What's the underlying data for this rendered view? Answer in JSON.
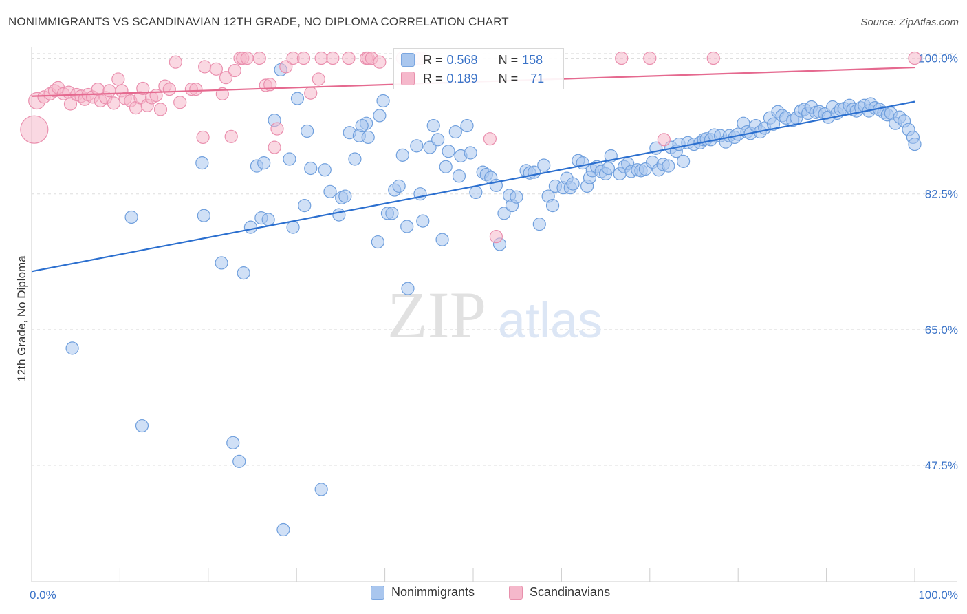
{
  "header": {
    "title": "NONIMMIGRANTS VS SCANDINAVIAN 12TH GRADE, NO DIPLOMA CORRELATION CHART",
    "source": "Source: ZipAtlas.com"
  },
  "watermark": {
    "zip": "ZIP",
    "atlas": "atlas"
  },
  "stats": {
    "rows": [
      {
        "r_label": "R =",
        "r_value": "0.568",
        "n_label": "N =",
        "n_value": "158",
        "color": "#a9c6ee",
        "border": "#7aa6e0"
      },
      {
        "r_label": "R =",
        "r_value": "0.189",
        "n_label": "N =",
        "n_value": "71",
        "color": "#f5b8cb",
        "border": "#e890ac"
      }
    ]
  },
  "colors": {
    "blue_fill": "#a9c6ee",
    "blue_stroke": "#6f9fdd",
    "blue_line": "#2b6fcf",
    "pink_fill": "#f5b8cb",
    "pink_stroke": "#ea8fae",
    "pink_line": "#e5698f",
    "axis_label": "#3a73c8",
    "grid": "#dddddd"
  },
  "chart_data": {
    "type": "scatter",
    "xlabel": "",
    "ylabel": "12th Grade, No Diploma",
    "xlim": [
      0,
      100
    ],
    "ylim": [
      32.5,
      102
    ],
    "x_tick_labels": [
      "0.0%",
      "100.0%"
    ],
    "y_ticks": [
      100.0,
      82.5,
      65.0,
      47.5
    ],
    "y_tick_labels": [
      "100.0%",
      "82.5%",
      "65.0%",
      "47.5%"
    ],
    "grid": true,
    "legend": "bottom",
    "series": [
      {
        "name": "Nonimmigrants",
        "trend": [
          [
            0,
            72.5
          ],
          [
            100,
            94.4
          ]
        ],
        "points": [
          [
            4.6,
            62.6
          ],
          [
            11.3,
            79.5
          ],
          [
            12.5,
            52.6
          ],
          [
            19.3,
            86.5
          ],
          [
            19.5,
            79.7
          ],
          [
            21.5,
            73.6
          ],
          [
            22.8,
            50.4
          ],
          [
            23.5,
            48.0
          ],
          [
            24.0,
            72.3
          ],
          [
            24.8,
            78.2
          ],
          [
            25.5,
            86.1
          ],
          [
            26.0,
            79.4
          ],
          [
            26.3,
            86.5
          ],
          [
            26.8,
            79.2
          ],
          [
            27.5,
            92.0
          ],
          [
            28.2,
            98.5
          ],
          [
            28.5,
            39.2
          ],
          [
            29.2,
            87.0
          ],
          [
            29.6,
            78.2
          ],
          [
            30.1,
            94.8
          ],
          [
            30.9,
            81.0
          ],
          [
            31.2,
            90.6
          ],
          [
            31.6,
            85.8
          ],
          [
            32.8,
            44.4
          ],
          [
            33.2,
            85.6
          ],
          [
            33.8,
            82.8
          ],
          [
            34.8,
            79.8
          ],
          [
            35.1,
            82.0
          ],
          [
            35.5,
            82.2
          ],
          [
            36.0,
            90.4
          ],
          [
            36.6,
            87.0
          ],
          [
            37.1,
            90.0
          ],
          [
            37.9,
            91.6
          ],
          [
            37.4,
            91.3
          ],
          [
            38.1,
            89.8
          ],
          [
            39.2,
            76.3
          ],
          [
            39.4,
            92.6
          ],
          [
            39.8,
            94.5
          ],
          [
            40.3,
            80.0
          ],
          [
            40.8,
            80.0
          ],
          [
            41.1,
            83.0
          ],
          [
            41.6,
            83.5
          ],
          [
            42.0,
            87.5
          ],
          [
            42.5,
            78.3
          ],
          [
            42.6,
            70.3
          ],
          [
            43.6,
            88.7
          ],
          [
            44.0,
            82.5
          ],
          [
            44.3,
            79.0
          ],
          [
            45.1,
            88.5
          ],
          [
            45.5,
            91.3
          ],
          [
            46.0,
            89.5
          ],
          [
            46.5,
            76.6
          ],
          [
            46.9,
            86.0
          ],
          [
            47.2,
            88.0
          ],
          [
            48.0,
            90.5
          ],
          [
            48.4,
            84.8
          ],
          [
            48.6,
            87.4
          ],
          [
            49.3,
            91.3
          ],
          [
            49.7,
            87.8
          ],
          [
            50.3,
            82.7
          ],
          [
            51.1,
            85.3
          ],
          [
            51.5,
            85.0
          ],
          [
            52.0,
            84.6
          ],
          [
            52.6,
            83.6
          ],
          [
            53.0,
            76.0
          ],
          [
            53.5,
            80.0
          ],
          [
            54.1,
            82.3
          ],
          [
            54.4,
            81.0
          ],
          [
            54.9,
            82.1
          ],
          [
            56.0,
            85.5
          ],
          [
            56.4,
            85.2
          ],
          [
            56.9,
            85.3
          ],
          [
            57.5,
            78.6
          ],
          [
            58.0,
            86.2
          ],
          [
            58.5,
            82.2
          ],
          [
            59.0,
            81.0
          ],
          [
            59.3,
            83.5
          ],
          [
            60.2,
            83.3
          ],
          [
            60.6,
            84.5
          ],
          [
            61.0,
            83.3
          ],
          [
            61.3,
            83.8
          ],
          [
            61.9,
            86.8
          ],
          [
            62.4,
            86.5
          ],
          [
            62.9,
            83.5
          ],
          [
            63.2,
            84.6
          ],
          [
            63.5,
            85.5
          ],
          [
            64.0,
            86.0
          ],
          [
            64.5,
            85.4
          ],
          [
            65.0,
            85.1
          ],
          [
            65.3,
            85.8
          ],
          [
            65.6,
            87.4
          ],
          [
            66.6,
            85.1
          ],
          [
            67.1,
            86.0
          ],
          [
            67.5,
            86.4
          ],
          [
            67.9,
            85.4
          ],
          [
            68.6,
            85.6
          ],
          [
            69.0,
            85.5
          ],
          [
            69.5,
            85.7
          ],
          [
            70.3,
            86.6
          ],
          [
            70.7,
            88.4
          ],
          [
            71.0,
            85.6
          ],
          [
            71.5,
            86.3
          ],
          [
            72.1,
            86.1
          ],
          [
            72.4,
            88.5
          ],
          [
            73.0,
            88.0
          ],
          [
            73.3,
            88.9
          ],
          [
            73.8,
            86.7
          ],
          [
            74.3,
            89.1
          ],
          [
            75.0,
            88.9
          ],
          [
            75.7,
            89.1
          ],
          [
            76.1,
            89.5
          ],
          [
            76.4,
            89.6
          ],
          [
            76.9,
            89.5
          ],
          [
            77.3,
            90.1
          ],
          [
            78.0,
            90.0
          ],
          [
            78.6,
            89.2
          ],
          [
            79.0,
            90.0
          ],
          [
            79.6,
            89.8
          ],
          [
            80.0,
            90.2
          ],
          [
            80.6,
            91.6
          ],
          [
            81.0,
            90.5
          ],
          [
            81.4,
            90.3
          ],
          [
            82.0,
            91.3
          ],
          [
            82.5,
            90.5
          ],
          [
            83.0,
            91.0
          ],
          [
            83.6,
            92.3
          ],
          [
            84.0,
            91.5
          ],
          [
            84.5,
            93.1
          ],
          [
            85.0,
            92.6
          ],
          [
            85.4,
            92.3
          ],
          [
            86.2,
            92.0
          ],
          [
            86.6,
            92.3
          ],
          [
            87.1,
            93.2
          ],
          [
            87.5,
            93.4
          ],
          [
            87.9,
            92.9
          ],
          [
            88.3,
            93.7
          ],
          [
            88.8,
            93.0
          ],
          [
            89.2,
            93.1
          ],
          [
            89.8,
            92.8
          ],
          [
            90.2,
            92.4
          ],
          [
            90.7,
            93.7
          ],
          [
            91.2,
            92.9
          ],
          [
            91.6,
            93.4
          ],
          [
            92.0,
            93.5
          ],
          [
            92.6,
            93.9
          ],
          [
            93.0,
            93.4
          ],
          [
            93.4,
            93.2
          ],
          [
            93.9,
            93.6
          ],
          [
            94.3,
            93.9
          ],
          [
            94.8,
            93.2
          ],
          [
            95.0,
            94.1
          ],
          [
            95.5,
            93.6
          ],
          [
            96.0,
            93.4
          ],
          [
            96.5,
            93.0
          ],
          [
            96.9,
            92.7
          ],
          [
            97.3,
            92.9
          ],
          [
            97.8,
            91.6
          ],
          [
            98.3,
            92.4
          ],
          [
            98.8,
            91.9
          ],
          [
            99.3,
            90.8
          ],
          [
            99.8,
            89.8
          ],
          [
            100.0,
            88.9
          ]
        ]
      },
      {
        "name": "Scandinavians",
        "trend": [
          [
            0,
            95.1
          ],
          [
            100,
            98.8
          ]
        ],
        "points": [
          [
            0.3,
            90.8
          ],
          [
            0.6,
            94.5
          ],
          [
            1.4,
            95.0
          ],
          [
            2.1,
            95.4
          ],
          [
            2.6,
            95.8
          ],
          [
            3.0,
            96.2
          ],
          [
            3.6,
            95.4
          ],
          [
            4.2,
            95.6
          ],
          [
            4.4,
            94.1
          ],
          [
            5.1,
            95.3
          ],
          [
            5.6,
            95.1
          ],
          [
            6.0,
            94.7
          ],
          [
            6.4,
            95.3
          ],
          [
            6.9,
            95.0
          ],
          [
            7.5,
            96.0
          ],
          [
            7.8,
            94.5
          ],
          [
            8.4,
            94.9
          ],
          [
            8.8,
            95.8
          ],
          [
            9.3,
            94.2
          ],
          [
            9.8,
            97.3
          ],
          [
            10.2,
            95.8
          ],
          [
            10.6,
            94.8
          ],
          [
            11.2,
            94.5
          ],
          [
            11.8,
            93.6
          ],
          [
            12.3,
            94.9
          ],
          [
            12.6,
            96.1
          ],
          [
            13.1,
            93.9
          ],
          [
            13.6,
            94.9
          ],
          [
            14.1,
            95.2
          ],
          [
            14.6,
            93.4
          ],
          [
            15.1,
            96.4
          ],
          [
            15.6,
            96.0
          ],
          [
            16.3,
            99.5
          ],
          [
            16.8,
            94.3
          ],
          [
            18.1,
            96.0
          ],
          [
            18.6,
            96.0
          ],
          [
            19.4,
            89.8
          ],
          [
            19.6,
            98.9
          ],
          [
            20.9,
            98.6
          ],
          [
            21.6,
            95.4
          ],
          [
            22.0,
            97.5
          ],
          [
            22.6,
            89.9
          ],
          [
            23.0,
            98.4
          ],
          [
            23.6,
            100.0
          ],
          [
            23.9,
            100.0
          ],
          [
            24.4,
            100.0
          ],
          [
            25.8,
            100.0
          ],
          [
            26.5,
            96.5
          ],
          [
            27.0,
            96.6
          ],
          [
            27.5,
            88.5
          ],
          [
            27.8,
            90.9
          ],
          [
            28.8,
            98.9
          ],
          [
            29.6,
            100.0
          ],
          [
            30.8,
            100.0
          ],
          [
            31.6,
            95.5
          ],
          [
            32.5,
            97.3
          ],
          [
            32.8,
            100.0
          ],
          [
            34.1,
            100.0
          ],
          [
            35.9,
            100.0
          ],
          [
            37.9,
            100.0
          ],
          [
            38.1,
            100.0
          ],
          [
            38.5,
            100.0
          ],
          [
            39.4,
            99.5
          ],
          [
            42.0,
            100.0
          ],
          [
            43.6,
            100.0
          ],
          [
            44.1,
            100.0
          ],
          [
            51.9,
            89.6
          ],
          [
            52.6,
            77.0
          ],
          [
            66.8,
            100.0
          ],
          [
            70.0,
            100.0
          ],
          [
            71.6,
            89.5
          ],
          [
            77.2,
            100.0
          ],
          [
            100.0,
            100.0
          ]
        ]
      }
    ]
  }
}
